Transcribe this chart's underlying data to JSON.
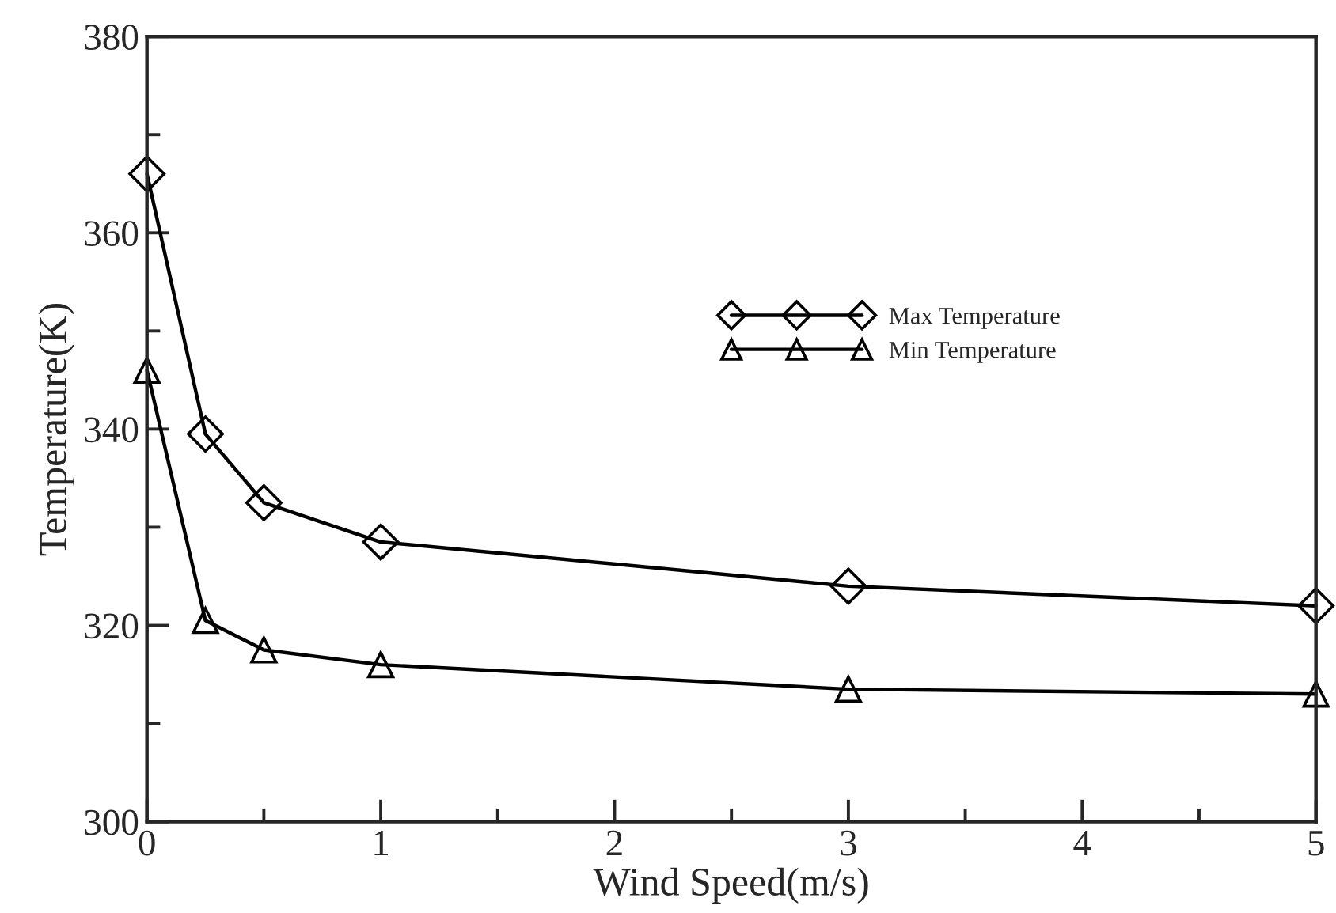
{
  "chart_data": {
    "type": "line",
    "xlabel": "Wind Speed(m/s)",
    "ylabel": "Temperature(K)",
    "x": [
      0,
      0.25,
      0.5,
      1,
      3,
      5
    ],
    "series": [
      {
        "name": "Max Temperature",
        "color": "#000000",
        "marker": "diamond",
        "values": [
          366,
          339.5,
          332.5,
          328.5,
          324,
          322
        ]
      },
      {
        "name": "Min Temperature",
        "color": "#000000",
        "marker": "triangle",
        "values": [
          346,
          320.5,
          317.5,
          316,
          313.5,
          313
        ]
      }
    ],
    "xlim": [
      0,
      5
    ],
    "xticks": [
      0,
      1,
      2,
      3,
      4,
      5
    ],
    "ylim": [
      300,
      380
    ],
    "yticks": [
      300,
      320,
      340,
      360,
      380
    ],
    "grid": false,
    "legend": "right",
    "line_style": "solid"
  }
}
